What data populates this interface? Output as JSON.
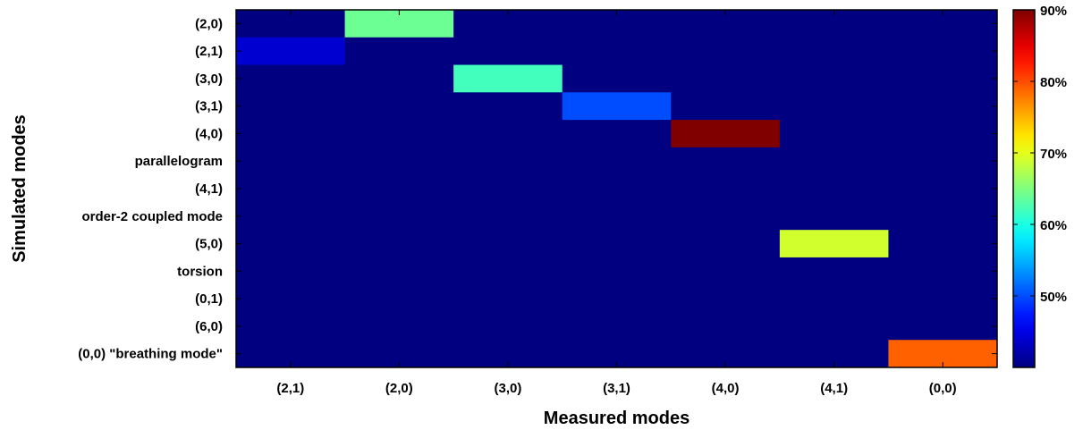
{
  "chart_data": {
    "type": "heatmap",
    "title": "",
    "xlabel": "Measured modes",
    "ylabel": "Simulated modes",
    "x_categories": [
      "(2,1)",
      "(2,0)",
      "(3,0)",
      "(3,1)",
      "(4,0)",
      "(4,1)",
      "(0,0)"
    ],
    "y_categories": [
      "(2,0)",
      "(2,1)",
      "(3,0)",
      "(3,1)",
      "(4,0)",
      "parallelogram",
      "(4,1)",
      "order-2 coupled mode",
      "(5,0)",
      "torsion",
      "(0,1)",
      "(6,0)",
      "(0,0) \"breathing mode\""
    ],
    "background_value": 40,
    "cells": [
      {
        "x": "(2,0)",
        "y": "(2,0)",
        "value": 64
      },
      {
        "x": "(2,1)",
        "y": "(2,1)",
        "value": 44
      },
      {
        "x": "(3,0)",
        "y": "(3,0)",
        "value": 62
      },
      {
        "x": "(3,1)",
        "y": "(3,1)",
        "value": 50
      },
      {
        "x": "(4,0)",
        "y": "(4,0)",
        "value": 90
      },
      {
        "x": "(4,1)",
        "y": "(5,0)",
        "value": 69
      },
      {
        "x": "(0,0)",
        "y": "(0,0) \"breathing mode\"",
        "value": 79
      }
    ],
    "colorbar": {
      "colormap": "jet",
      "range": [
        40,
        90
      ],
      "ticks": [
        50,
        60,
        70,
        80,
        90
      ],
      "tick_labels": [
        "50%",
        "60%",
        "70%",
        "80%",
        "90%"
      ]
    }
  }
}
